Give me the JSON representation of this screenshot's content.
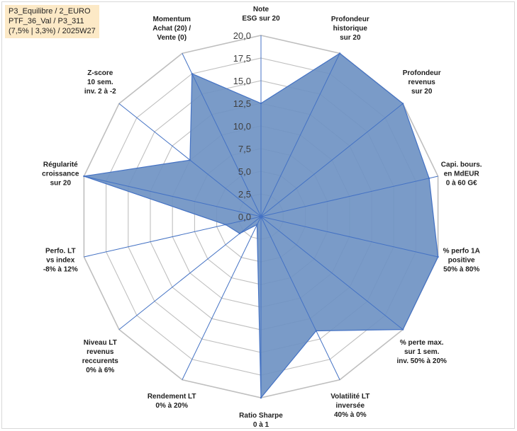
{
  "info_box": {
    "line1": "P3_Equilibre / 2_EURO",
    "line2": "PTF_36_Val / P3_311",
    "line3": "(7,5% | 3,3%) / 2025W27"
  },
  "colors": {
    "fill": "#6f93c3",
    "stroke": "#4472c4",
    "grid": "#bfbfbf",
    "info_bg": "#fce9c6"
  },
  "chart_data": {
    "type": "radar",
    "title": "",
    "rmax": 20,
    "ticks": [
      "0,0",
      "2,5",
      "5,0",
      "7,5",
      "10,0",
      "12,5",
      "15,0",
      "17,5",
      "20,0"
    ],
    "axes": [
      [
        "Note",
        "ESG sur 20"
      ],
      [
        "Profondeur",
        "historique",
        "sur 20"
      ],
      [
        "Profondeur",
        "revenus",
        "sur 20"
      ],
      [
        "Capi. bours.",
        "en MdEUR",
        "0 à 60 G€"
      ],
      [
        "% perfo 1A",
        "positive",
        "50% à 80%"
      ],
      [
        "% perte max.",
        "sur 1 sem.",
        "inv. 50% à 20%"
      ],
      [
        "Volatilité LT",
        "inversée",
        "40% à 0%"
      ],
      [
        "Ratio Sharpe",
        "0 à 1"
      ],
      [
        "Rendement LT",
        "0% à 20%"
      ],
      [
        "Niveau LT",
        "revenus",
        "reccurents",
        "0% à 6%"
      ],
      [
        "Perfo. LT",
        "vs index",
        "-8% à 12%"
      ],
      [
        "Régularité",
        "croissance",
        "sur 20"
      ],
      [
        "Z-score",
        "10 sem.",
        "inv. 2 à -2"
      ],
      [
        "Momentum",
        "Achat (20) /",
        "Vente (0)"
      ]
    ],
    "series": [
      {
        "values": [
          12.5,
          20,
          20,
          19,
          20,
          20,
          14,
          20,
          1,
          3,
          4,
          20,
          10,
          17.5
        ]
      }
    ]
  }
}
